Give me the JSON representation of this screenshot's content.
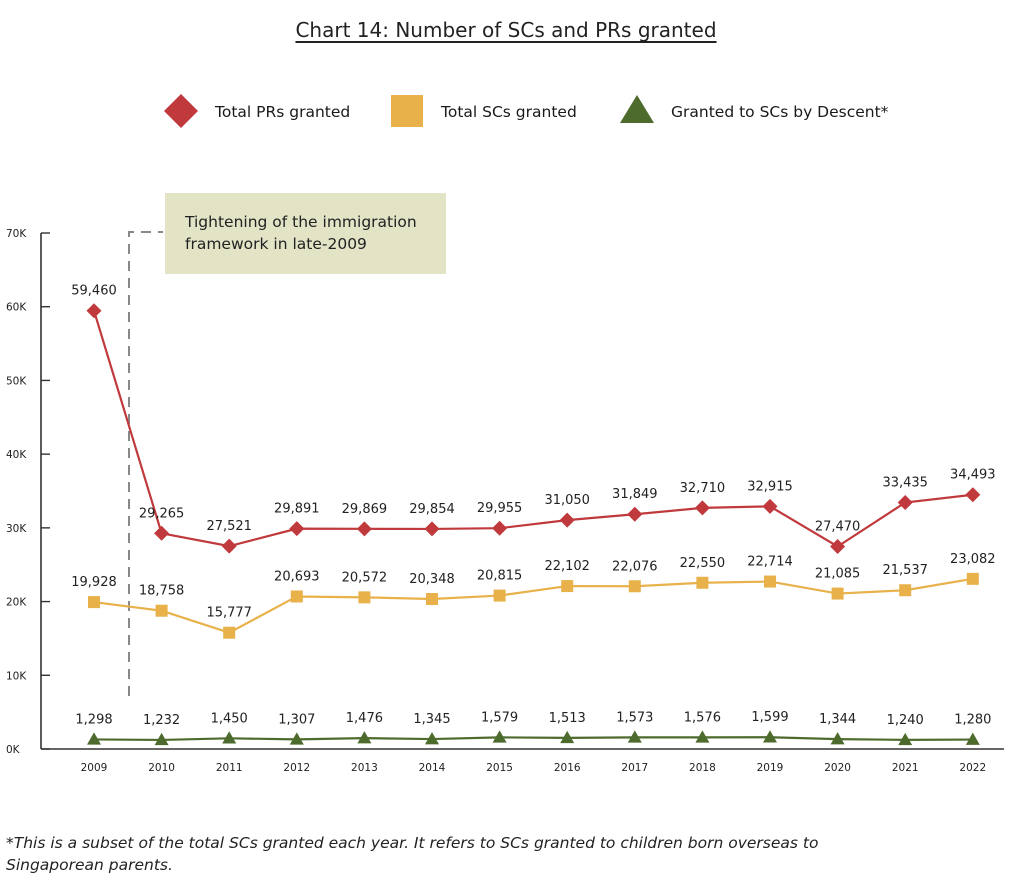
{
  "chart_data": {
    "type": "line",
    "title": "Chart 14: Number of SCs and PRs granted",
    "x": [
      "2009",
      "2010",
      "2011",
      "2012",
      "2013",
      "2014",
      "2015",
      "2016",
      "2017",
      "2018",
      "2019",
      "2020",
      "2021",
      "2022"
    ],
    "y_ticks": [
      "0K",
      "10K",
      "20K",
      "30K",
      "40K",
      "50K",
      "60K",
      "70K"
    ],
    "ylim": [
      0,
      70000
    ],
    "grid": false,
    "legend_position": "top-center",
    "series": [
      {
        "name": "Total PRs granted",
        "color": "#c0393d",
        "marker": "diamond",
        "values": [
          59460,
          29265,
          27521,
          29891,
          29869,
          29854,
          29955,
          31050,
          31849,
          32710,
          32915,
          27470,
          33435,
          34493
        ],
        "labels": [
          "59,460",
          "29,265",
          "27,521",
          "29,891",
          "29,869",
          "29,854",
          "29,955",
          "31,050",
          "31,849",
          "32,710",
          "32,915",
          "27,470",
          "33,435",
          "34,493"
        ]
      },
      {
        "name": "Total SCs granted",
        "color": "#e8b14a",
        "marker": "square",
        "values": [
          19928,
          18758,
          15777,
          20693,
          20572,
          20348,
          20815,
          22102,
          22076,
          22550,
          22714,
          21085,
          21537,
          23082
        ],
        "labels": [
          "19,928",
          "18,758",
          "15,777",
          "20,693",
          "20,572",
          "20,348",
          "20,815",
          "22,102",
          "22,076",
          "22,550",
          "22,714",
          "21,085",
          "21,537",
          "23,082"
        ]
      },
      {
        "name": "Granted to SCs by Descent*",
        "color": "#4e6b2e",
        "marker": "triangle",
        "values": [
          1298,
          1232,
          1450,
          1307,
          1476,
          1345,
          1579,
          1513,
          1573,
          1576,
          1599,
          1344,
          1240,
          1280
        ],
        "labels": [
          "1,298",
          "1,232",
          "1,450",
          "1,307",
          "1,476",
          "1,345",
          "1,579",
          "1,513",
          "1,573",
          "1,576",
          "1,599",
          "1,344",
          "1,240",
          "1,280"
        ]
      }
    ],
    "annotations": [
      {
        "text_line1": "Tightening of the immigration",
        "text_line2": "framework in late-2009",
        "between": [
          "2009",
          "2010"
        ]
      }
    ],
    "footnote": "*This is a subset of the total SCs granted each year. It refers to SCs granted to children born overseas to Singaporean parents."
  },
  "colors": {
    "annotation_bg": "#e3e3c6",
    "axis": "#333333",
    "divider": "#888888"
  }
}
